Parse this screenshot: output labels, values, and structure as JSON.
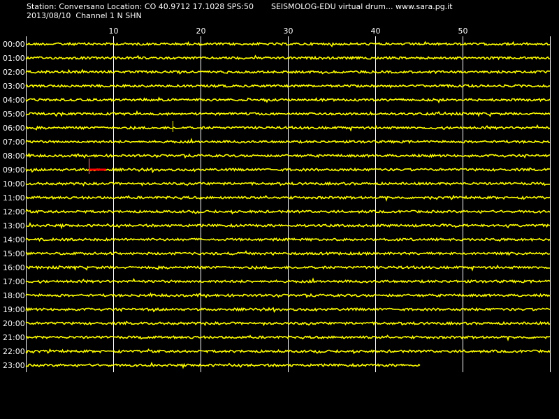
{
  "header": {
    "station_line": "Station: Conversano Location: CO 40.9712 17.1028 SPS:50",
    "app_line": "SEISMOLOG-EDU virtual drum... www.sara.pg.it",
    "date_line": "2013/08/10  Channel 1 N SHN"
  },
  "chart_data": {
    "type": "line",
    "title": "",
    "x_axis": {
      "label": "",
      "range_minutes": [
        0,
        60
      ],
      "ticks": [
        10,
        20,
        30,
        40,
        50
      ]
    },
    "rows": [
      "00:00",
      "01:00",
      "02:00",
      "03:00",
      "04:00",
      "05:00",
      "06:00",
      "07:00",
      "08:00",
      "09:00",
      "10:00",
      "11:00",
      "12:00",
      "13:00",
      "14:00",
      "15:00",
      "16:00",
      "17:00",
      "18:00",
      "19:00",
      "20:00",
      "21:00",
      "22:00",
      "23:00"
    ],
    "last_row_end_minute": 45.2,
    "events": [
      {
        "row": "06:00",
        "minute": 16.8,
        "type": "spike",
        "color": "#ffff00"
      },
      {
        "row": "09:00",
        "minute": 7.2,
        "end_minute": 9.2,
        "type": "marker",
        "color": "#ff0000"
      }
    ],
    "colors": {
      "background": "#000000",
      "trace": "#ffff00",
      "grid": "#ffffff",
      "marker": "#ff0000"
    }
  }
}
